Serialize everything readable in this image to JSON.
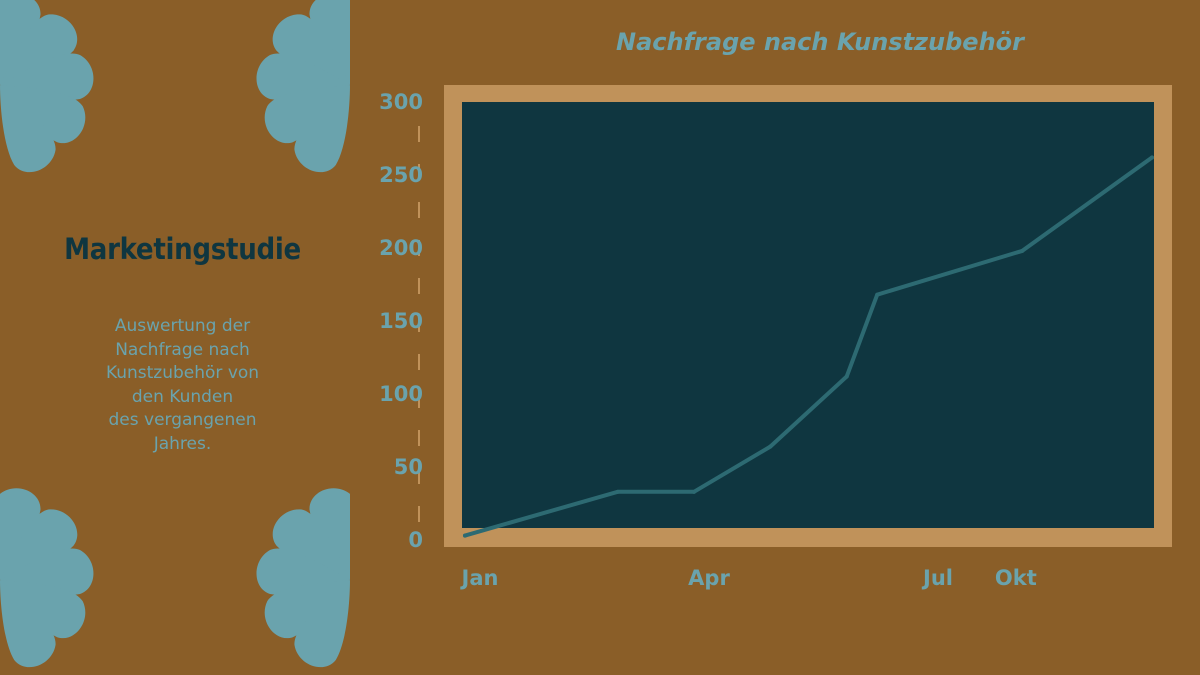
{
  "sidebar": {
    "title": "Marketingstudie",
    "description": "Auswertung der\nNachfrage nach\nKunstzubehör von\nden Kunden\ndes vergangenen\nJahres."
  },
  "colors": {
    "background": "#8a5e28",
    "petal": "#6aa3ad",
    "plot_background": "#0f3640",
    "plot_frame": "#c0925a",
    "line": "#2d6a72",
    "text_accent": "#6aa3ad",
    "title_dark": "#0f3640"
  },
  "chart_data": {
    "type": "line",
    "title": "Nachfrage nach Kunstzubehör",
    "xlabel": "",
    "ylabel": "",
    "x_tick_labels": [
      "Jan",
      "Apr",
      "Jul",
      "Okt"
    ],
    "y_ticks": [
      "0",
      "50",
      "100",
      "150",
      "200",
      "250",
      "300"
    ],
    "ylim": [
      0,
      300
    ],
    "grid": false,
    "legend": "none",
    "series": [
      {
        "x": [
          0,
          2,
          3,
          4,
          5,
          5.4,
          7.3,
          9
        ],
        "values": [
          3,
          33,
          33,
          64,
          112,
          168,
          198,
          262
        ]
      }
    ]
  }
}
